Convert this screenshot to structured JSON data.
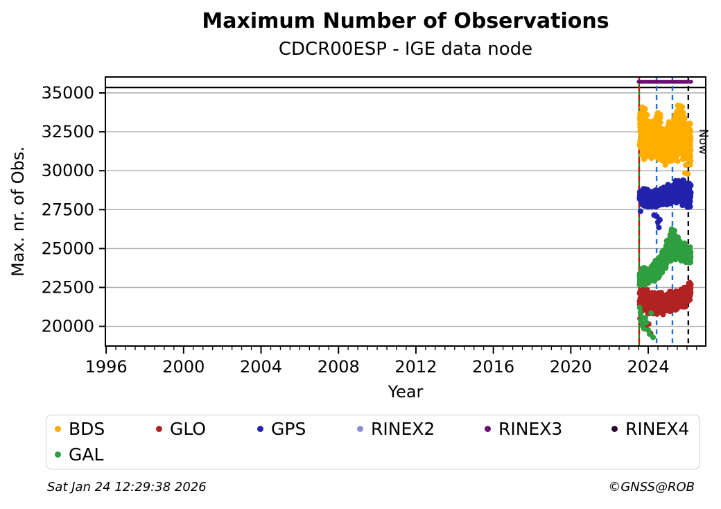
{
  "header": {
    "title": "Maximum Number of Observations",
    "subtitle": "CDCR00ESP - IGE data node"
  },
  "footer": {
    "timestamp": "Sat Jan 24 12:29:38 2026",
    "credit": "©GNSS@ROB"
  },
  "legend": {
    "items": [
      {
        "label": "BDS",
        "color": "#FFAE00"
      },
      {
        "label": "GLO",
        "color": "#B22222"
      },
      {
        "label": "GPS",
        "color": "#2222AC"
      },
      {
        "label": "RINEX2",
        "color": "#8D8DD3"
      },
      {
        "label": "RINEX3",
        "color": "#6C0D72"
      },
      {
        "label": "RINEX4",
        "color": "#2A0730"
      },
      {
        "label": "GAL",
        "color": "#2F9E3F"
      }
    ]
  },
  "chart_data": {
    "type": "scatter",
    "title": "Maximum Number of Observations",
    "subtitle": "CDCR00ESP - IGE data node",
    "xlabel": "Year",
    "ylabel": "Max. nr. of Obs.",
    "xlim": [
      1995.96,
      2026.97
    ],
    "ylim": [
      18735,
      36025
    ],
    "xticks": [
      1996,
      2000,
      2004,
      2008,
      2012,
      2016,
      2020,
      2024
    ],
    "x_minor_step": 0.5,
    "yticks": [
      20000,
      22500,
      25000,
      27500,
      30000,
      32500,
      35000
    ],
    "grid": "horizontal-gray",
    "grid_color": "#ABABAB",
    "series": [
      {
        "name": "BDS",
        "color": "#FFAE00",
        "approx_points": 950,
        "envelope": [
          [
            2023.55,
            30800,
            34300
          ],
          [
            2023.7,
            30600,
            34550
          ],
          [
            2023.85,
            30500,
            34100
          ],
          [
            2024.0,
            30600,
            33600
          ],
          [
            2024.2,
            30500,
            33400
          ],
          [
            2024.45,
            30600,
            34100
          ],
          [
            2024.6,
            30400,
            33800
          ],
          [
            2024.8,
            30300,
            33100
          ],
          [
            2025.0,
            30400,
            33200
          ],
          [
            2025.2,
            30300,
            33400
          ],
          [
            2025.45,
            30500,
            34100
          ],
          [
            2025.65,
            30600,
            34600
          ],
          [
            2025.8,
            30400,
            34000
          ],
          [
            2026.0,
            29900,
            33600
          ],
          [
            2026.2,
            30200,
            33500
          ]
        ],
        "extra_points": [
          [
            2025.9,
            29850
          ],
          [
            2026.05,
            29800
          ]
        ]
      },
      {
        "name": "GLO",
        "color": "#B22222",
        "approx_points": 680,
        "envelope": [
          [
            2023.55,
            20950,
            22500
          ],
          [
            2023.8,
            20850,
            22400
          ],
          [
            2024.0,
            20800,
            22350
          ],
          [
            2024.3,
            20750,
            22250
          ],
          [
            2024.6,
            20700,
            22300
          ],
          [
            2024.9,
            20800,
            22250
          ],
          [
            2025.2,
            20900,
            22350
          ],
          [
            2025.5,
            21000,
            22400
          ],
          [
            2025.8,
            21100,
            22500
          ],
          [
            2026.0,
            21300,
            22700
          ],
          [
            2026.2,
            21700,
            22950
          ]
        ],
        "extra_points": [
          [
            2023.65,
            20250
          ],
          [
            2023.78,
            20050
          ],
          [
            2023.9,
            19850
          ],
          [
            2024.02,
            20150
          ],
          [
            2024.12,
            19550
          ],
          [
            2023.58,
            20500
          ]
        ]
      },
      {
        "name": "GPS",
        "color": "#2222AC",
        "approx_points": 520,
        "envelope": [
          [
            2023.55,
            27800,
            28950
          ],
          [
            2023.8,
            27700,
            28900
          ],
          [
            2024.1,
            27600,
            28800
          ],
          [
            2024.4,
            27500,
            28900
          ],
          [
            2024.7,
            27600,
            29000
          ],
          [
            2025.0,
            27700,
            29150
          ],
          [
            2025.3,
            27800,
            29350
          ],
          [
            2025.6,
            27850,
            29550
          ],
          [
            2025.9,
            27600,
            29650
          ],
          [
            2026.2,
            27500,
            29400
          ]
        ],
        "extra_points": [
          [
            2024.45,
            27050
          ],
          [
            2024.5,
            26700
          ],
          [
            2024.55,
            26350
          ],
          [
            2024.6,
            26850
          ],
          [
            2024.3,
            27150
          ],
          [
            2023.6,
            27400
          ]
        ]
      },
      {
        "name": "RINEX2",
        "color": "#8D8DD3",
        "approx_points": 0
      },
      {
        "name": "RINEX3",
        "color": "#6C0D72",
        "bar": {
          "x_start": 2023.5,
          "x_end": 2026.22,
          "y": 35720
        }
      },
      {
        "name": "RINEX4",
        "color": "#2A0730",
        "approx_points": 0
      },
      {
        "name": "GAL",
        "color": "#2F9E3F",
        "approx_points": 720,
        "envelope": [
          [
            2023.55,
            22650,
            23650
          ],
          [
            2023.8,
            22600,
            23850
          ],
          [
            2024.0,
            22700,
            23700
          ],
          [
            2024.2,
            22800,
            23950
          ],
          [
            2024.4,
            22900,
            24350
          ],
          [
            2024.6,
            23100,
            24650
          ],
          [
            2024.8,
            23300,
            25050
          ],
          [
            2025.0,
            23600,
            25750
          ],
          [
            2025.15,
            23800,
            26350
          ],
          [
            2025.3,
            24000,
            26500
          ],
          [
            2025.45,
            24200,
            26050
          ],
          [
            2025.6,
            24200,
            25650
          ],
          [
            2025.8,
            24000,
            25450
          ],
          [
            2026.0,
            23900,
            25250
          ],
          [
            2026.2,
            24000,
            25100
          ]
        ],
        "extra_points": [
          [
            2023.62,
            20350
          ],
          [
            2023.7,
            20050
          ],
          [
            2023.78,
            19850
          ],
          [
            2023.9,
            20250
          ],
          [
            2024.0,
            19750
          ],
          [
            2024.07,
            19500
          ],
          [
            2023.85,
            20550
          ],
          [
            2024.15,
            20850
          ],
          [
            2024.25,
            19300
          ],
          [
            2023.56,
            21200
          ],
          [
            2023.6,
            20900
          ],
          [
            2023.66,
            20600
          ]
        ]
      }
    ],
    "reference_lines": [
      {
        "orientation": "horizontal",
        "y": 35350,
        "color": "#000000",
        "style": "solid",
        "name": "max-obs-line"
      },
      {
        "orientation": "vertical",
        "x": 2023.53,
        "color": "#138A13",
        "style": "solid",
        "name": "data-start-line-green"
      },
      {
        "orientation": "vertical",
        "x": 2023.53,
        "color": "#CC1414",
        "style": "dashed",
        "name": "data-start-line-red"
      },
      {
        "orientation": "vertical",
        "x": 2024.43,
        "color": "#1D6FD1",
        "style": "dashed",
        "name": "event-line-1"
      },
      {
        "orientation": "vertical",
        "x": 2025.25,
        "color": "#1D6FD1",
        "style": "dashed",
        "name": "event-line-2"
      },
      {
        "orientation": "vertical",
        "x": 2026.07,
        "color": "#000000",
        "style": "dashed",
        "name": "now-line",
        "label": "Now"
      }
    ],
    "legend_position": "bottom",
    "legend_columns": 6
  }
}
